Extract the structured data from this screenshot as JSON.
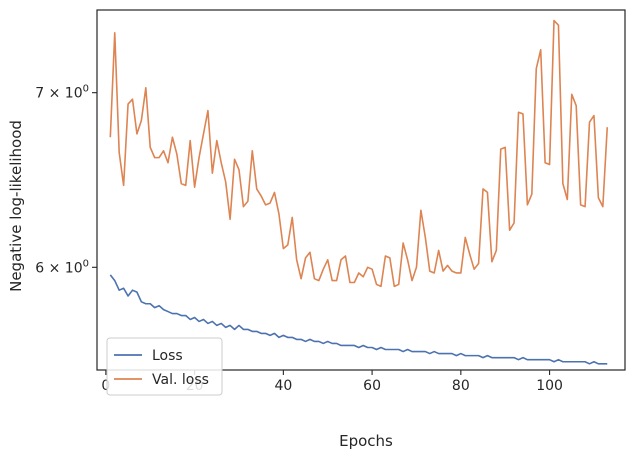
{
  "chart_data": {
    "type": "line",
    "title": "",
    "xlabel": "Epochs",
    "ylabel": "Negative log-likelihood",
    "yscale": "log",
    "xlim": [
      -2,
      117
    ],
    "ylim": [
      5.48,
      7.53
    ],
    "x_ticks": [
      0,
      20,
      40,
      60,
      80,
      100
    ],
    "x_tick_labels": [
      "0",
      "20",
      "40",
      "60",
      "80",
      "100"
    ],
    "y_ticks": [
      6,
      7
    ],
    "y_tick_labels": [
      {
        "base": "6 × 10",
        "exp": "0"
      },
      {
        "base": "7 × 10",
        "exp": "0"
      }
    ],
    "grid": false,
    "legend_position": "lower-left",
    "x": [
      1,
      2,
      3,
      4,
      5,
      6,
      7,
      8,
      9,
      10,
      11,
      12,
      13,
      14,
      15,
      16,
      17,
      18,
      19,
      20,
      21,
      22,
      23,
      24,
      25,
      26,
      27,
      28,
      29,
      30,
      31,
      32,
      33,
      34,
      35,
      36,
      37,
      38,
      39,
      40,
      41,
      42,
      43,
      44,
      45,
      46,
      47,
      48,
      49,
      50,
      51,
      52,
      53,
      54,
      55,
      56,
      57,
      58,
      59,
      60,
      61,
      62,
      63,
      64,
      65,
      66,
      67,
      68,
      69,
      70,
      71,
      72,
      73,
      74,
      75,
      76,
      77,
      78,
      79,
      80,
      81,
      82,
      83,
      84,
      85,
      86,
      87,
      88,
      89,
      90,
      91,
      92,
      93,
      94,
      95,
      96,
      97,
      98,
      99,
      100,
      101,
      102,
      103,
      104,
      105,
      106,
      107,
      108,
      109,
      110,
      111,
      112,
      113
    ],
    "series": [
      {
        "name": "Loss",
        "color": "#4c72b0",
        "values": [
          5.96,
          5.93,
          5.88,
          5.89,
          5.85,
          5.88,
          5.87,
          5.82,
          5.81,
          5.81,
          5.79,
          5.8,
          5.78,
          5.77,
          5.76,
          5.76,
          5.75,
          5.75,
          5.73,
          5.74,
          5.72,
          5.73,
          5.71,
          5.72,
          5.7,
          5.71,
          5.69,
          5.7,
          5.68,
          5.7,
          5.68,
          5.68,
          5.67,
          5.67,
          5.66,
          5.66,
          5.65,
          5.66,
          5.64,
          5.65,
          5.64,
          5.64,
          5.63,
          5.63,
          5.62,
          5.63,
          5.62,
          5.62,
          5.61,
          5.62,
          5.61,
          5.61,
          5.6,
          5.6,
          5.6,
          5.6,
          5.59,
          5.6,
          5.59,
          5.59,
          5.58,
          5.59,
          5.58,
          5.58,
          5.58,
          5.58,
          5.57,
          5.58,
          5.57,
          5.57,
          5.57,
          5.57,
          5.56,
          5.57,
          5.56,
          5.56,
          5.56,
          5.56,
          5.55,
          5.56,
          5.55,
          5.55,
          5.55,
          5.55,
          5.54,
          5.55,
          5.54,
          5.54,
          5.54,
          5.54,
          5.54,
          5.54,
          5.53,
          5.54,
          5.53,
          5.53,
          5.53,
          5.53,
          5.53,
          5.53,
          5.52,
          5.53,
          5.52,
          5.52,
          5.52,
          5.52,
          5.52,
          5.52,
          5.51,
          5.52,
          5.51,
          5.51,
          5.51
        ]
      },
      {
        "name": "Val. loss",
        "color": "#dd8452",
        "values": [
          6.73,
          7.38,
          6.64,
          6.45,
          6.93,
          6.96,
          6.75,
          6.83,
          7.03,
          6.67,
          6.61,
          6.61,
          6.65,
          6.58,
          6.73,
          6.63,
          6.46,
          6.45,
          6.71,
          6.44,
          6.61,
          6.75,
          6.89,
          6.52,
          6.71,
          6.58,
          6.47,
          6.26,
          6.6,
          6.54,
          6.33,
          6.36,
          6.65,
          6.43,
          6.39,
          6.34,
          6.35,
          6.41,
          6.29,
          6.1,
          6.12,
          6.27,
          6.04,
          5.94,
          6.05,
          6.08,
          5.94,
          5.93,
          5.99,
          6.04,
          5.93,
          5.93,
          6.04,
          6.06,
          5.92,
          5.92,
          5.97,
          5.95,
          6.0,
          5.99,
          5.91,
          5.9,
          6.06,
          6.05,
          5.9,
          5.91,
          6.13,
          6.04,
          5.93,
          6.0,
          6.31,
          6.16,
          5.98,
          5.97,
          6.09,
          5.98,
          6.01,
          5.98,
          5.97,
          5.97,
          6.16,
          6.07,
          5.99,
          6.02,
          6.43,
          6.41,
          6.03,
          6.09,
          6.66,
          6.67,
          6.2,
          6.24,
          6.88,
          6.87,
          6.34,
          6.4,
          7.15,
          7.27,
          6.58,
          6.57,
          7.46,
          7.43,
          6.46,
          6.37,
          6.99,
          6.92,
          6.34,
          6.33,
          6.82,
          6.86,
          6.38,
          6.33,
          6.79
        ]
      }
    ]
  }
}
